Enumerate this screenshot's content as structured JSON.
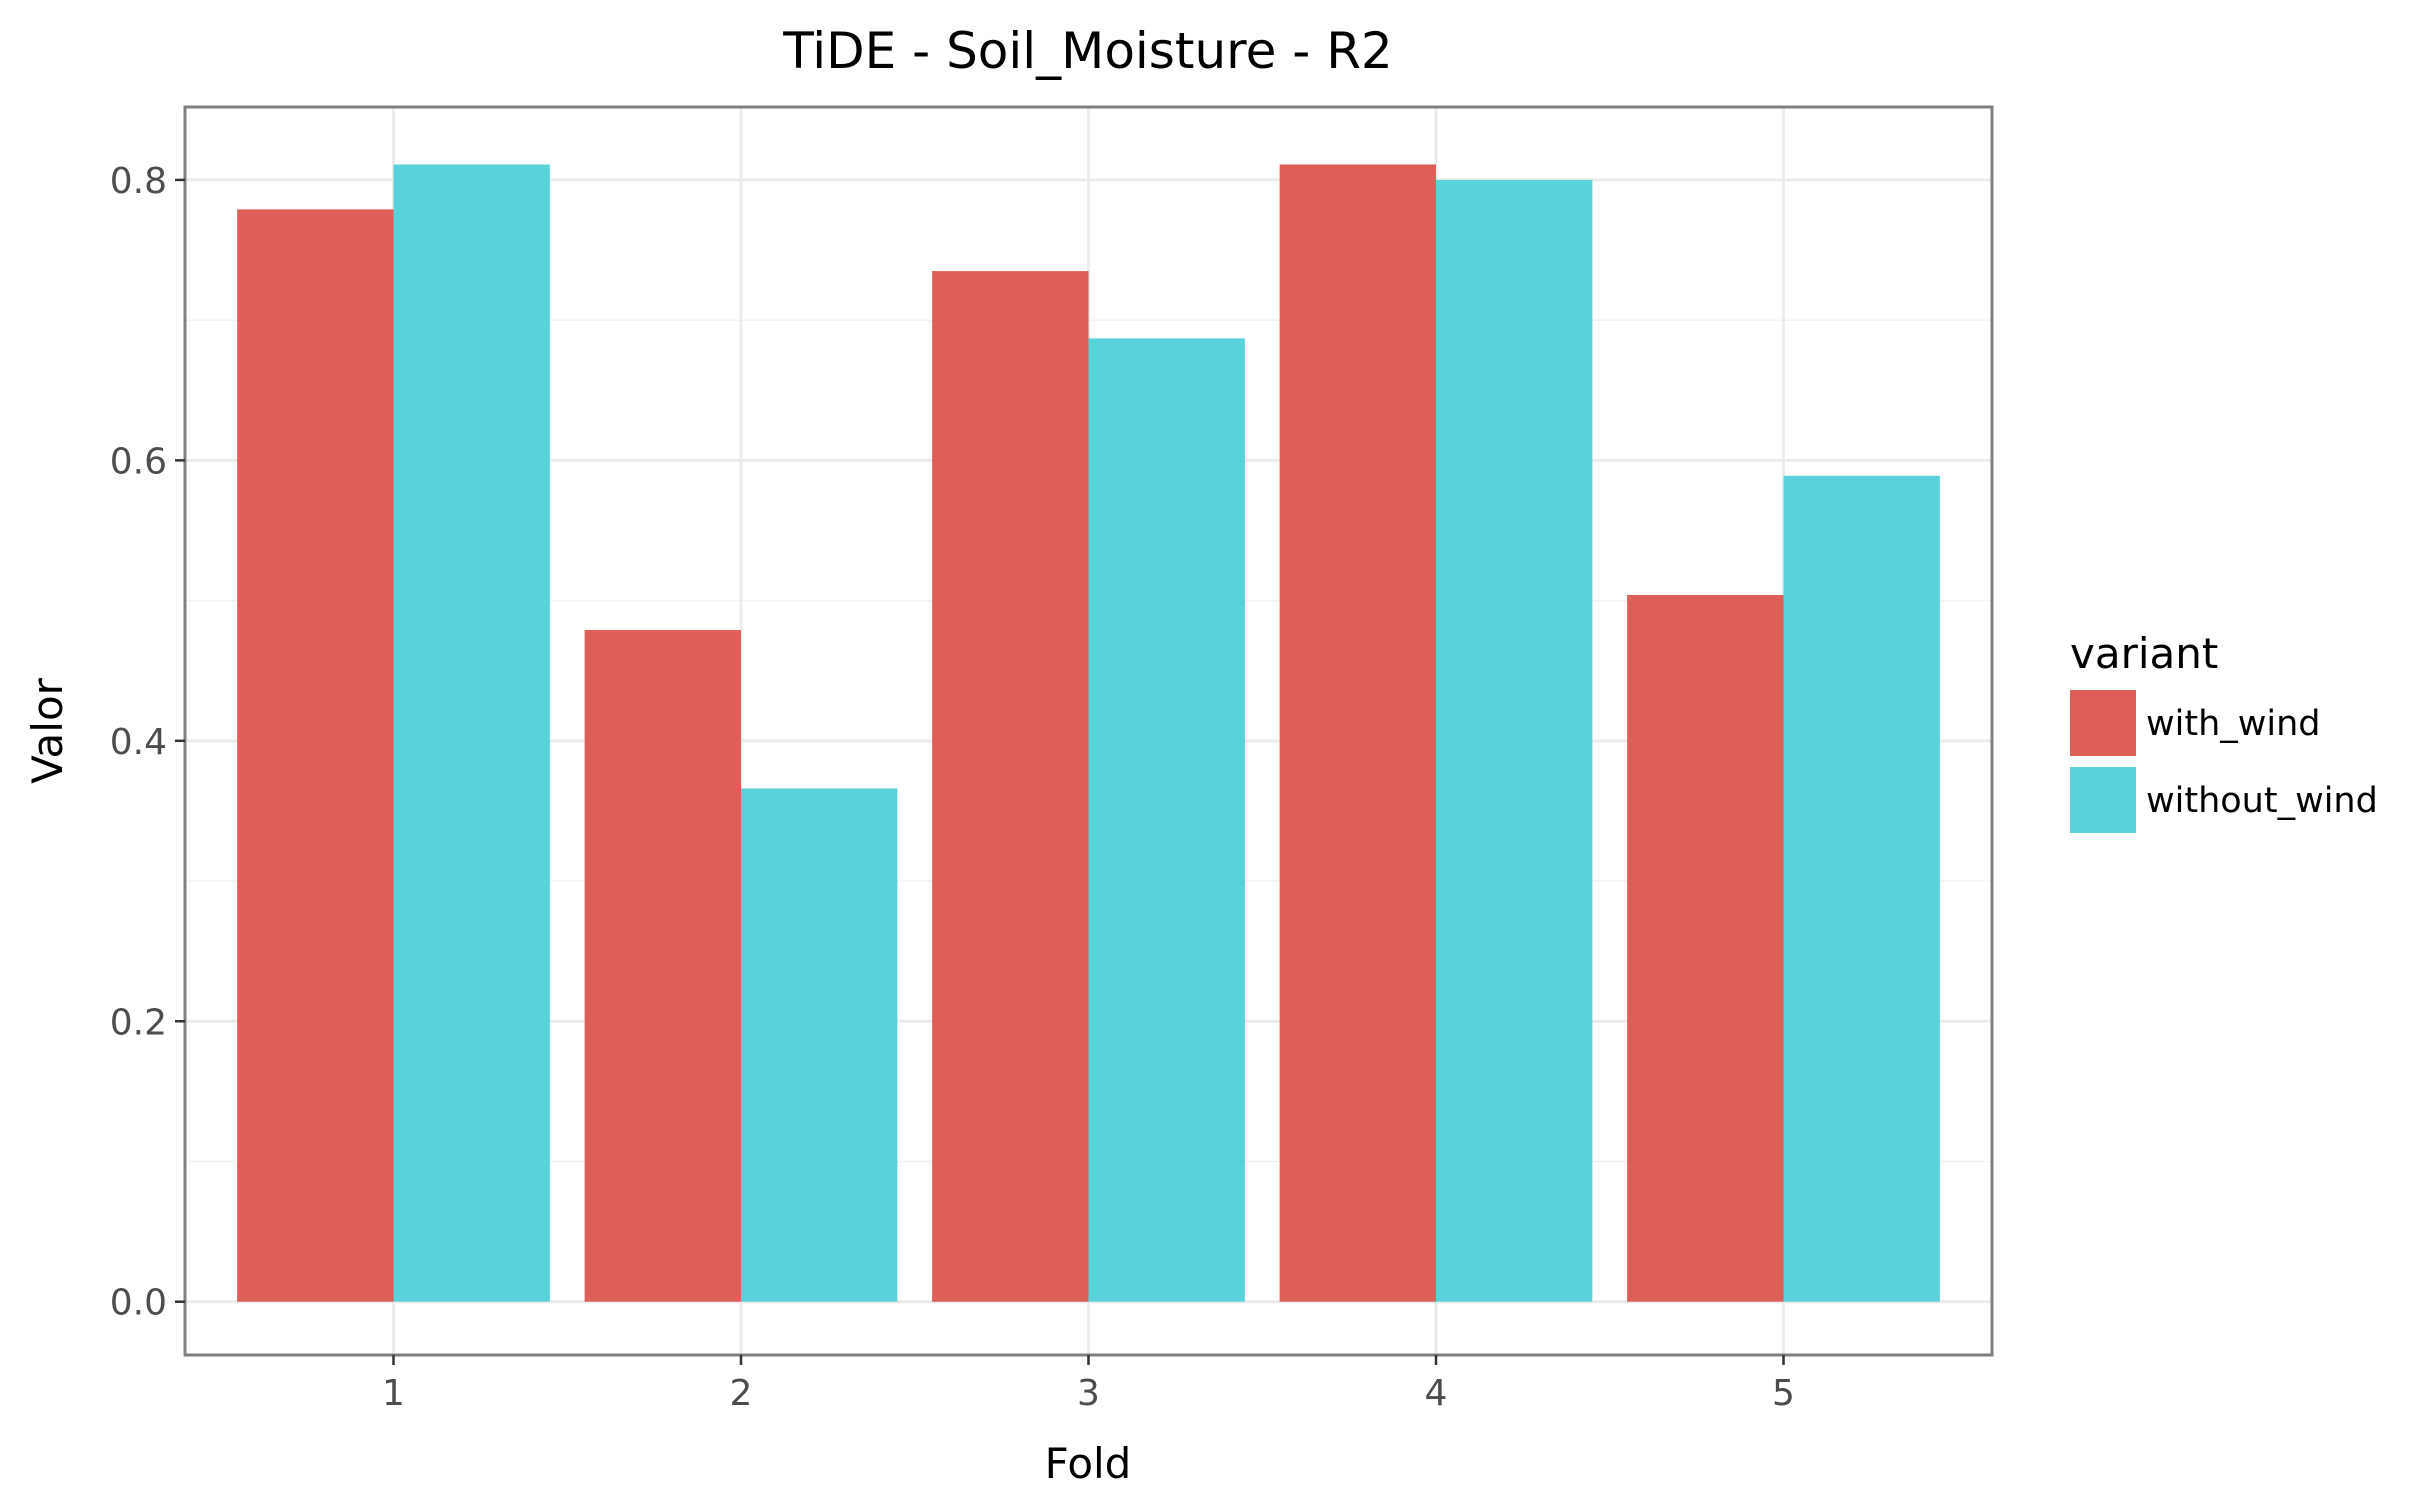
{
  "chart_data": {
    "type": "bar",
    "title": "TiDE - Soil_Moisture - R2",
    "xlabel": "Fold",
    "ylabel": "Valor",
    "categories": [
      "1",
      "2",
      "3",
      "4",
      "5"
    ],
    "series": [
      {
        "name": "with_wind",
        "color": "#dd5f57",
        "values": [
          0.779,
          0.479,
          0.735,
          0.811,
          0.504
        ]
      },
      {
        "name": "without_wind",
        "color": "#59d2da",
        "values": [
          0.811,
          0.366,
          0.687,
          0.8,
          0.589
        ]
      }
    ],
    "ylim": [
      -0.038,
      0.852
    ],
    "yticks": [
      0.0,
      0.2,
      0.4,
      0.6,
      0.8
    ],
    "ytick_labels": [
      "0.0",
      "0.2",
      "0.4",
      "0.6",
      "0.8"
    ],
    "grid": true,
    "legend": {
      "title": "variant",
      "position": "right"
    }
  }
}
